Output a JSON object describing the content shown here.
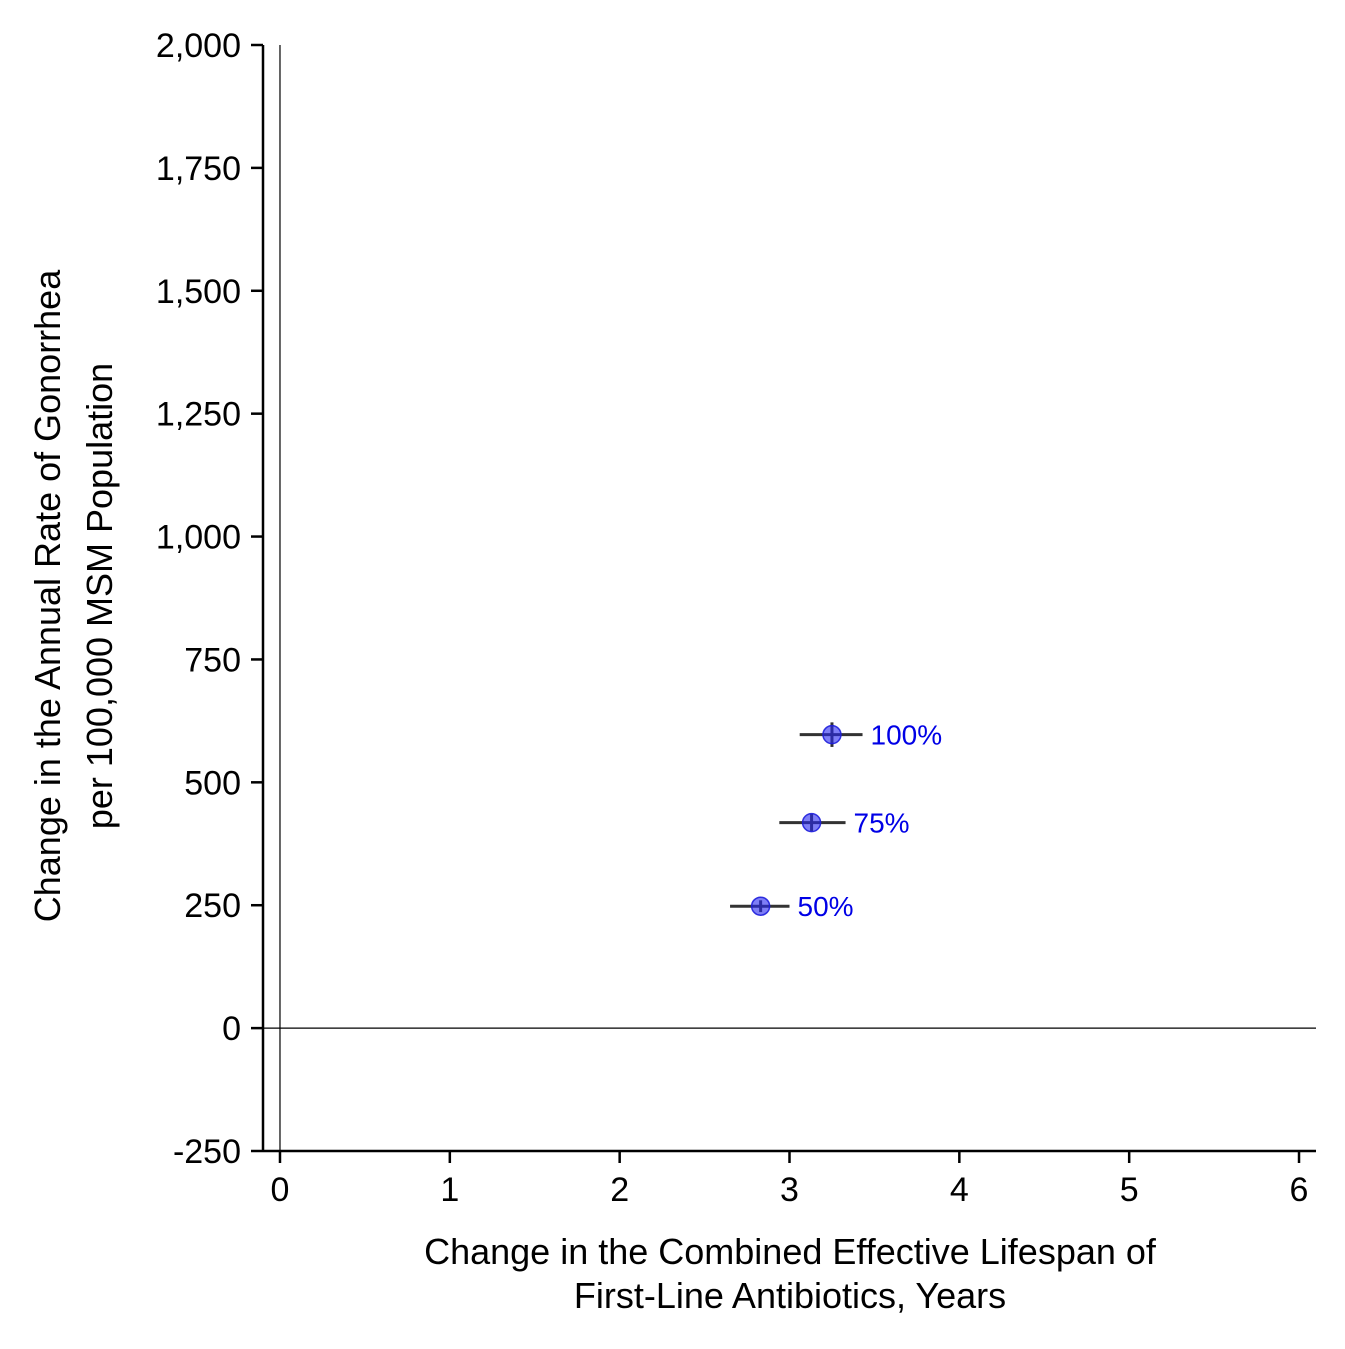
{
  "chart_data": {
    "type": "scatter",
    "xlabel": [
      "Change in the Combined Effective Lifespan of",
      "First-Line Antibiotics, Years"
    ],
    "ylabel": [
      "Change in the Annual Rate of Gonorrhea",
      "per 100,000 MSM Population"
    ],
    "xlim": [
      -0.1,
      6.1
    ],
    "ylim": [
      -250,
      2000
    ],
    "x_ticks": [
      0,
      1,
      2,
      3,
      4,
      5,
      6
    ],
    "x_tick_labels": [
      "0",
      "1",
      "2",
      "3",
      "4",
      "5",
      "6"
    ],
    "y_ticks": [
      -250,
      0,
      250,
      500,
      750,
      1000,
      1250,
      1500,
      1750,
      2000
    ],
    "y_tick_labels": [
      "-250",
      "0",
      "250",
      "500",
      "750",
      "1,000",
      "1,250",
      "1,500",
      "1,750",
      "2,000"
    ],
    "reference_lines": {
      "x": 0,
      "y": 0
    },
    "grid": false,
    "point_color": "#2828f0",
    "label_color": "#0000e6",
    "points": [
      {
        "label": "100%",
        "x": 3.25,
        "y": 597,
        "x_err": [
          3.06,
          3.43
        ],
        "y_err": [
          572,
          622
        ]
      },
      {
        "label": "75%",
        "x": 3.13,
        "y": 418,
        "x_err": [
          2.94,
          3.33
        ],
        "y_err": [
          400,
          436
        ]
      },
      {
        "label": "50%",
        "x": 2.83,
        "y": 248,
        "x_err": [
          2.65,
          3.0
        ],
        "y_err": [
          236,
          260
        ]
      }
    ]
  }
}
